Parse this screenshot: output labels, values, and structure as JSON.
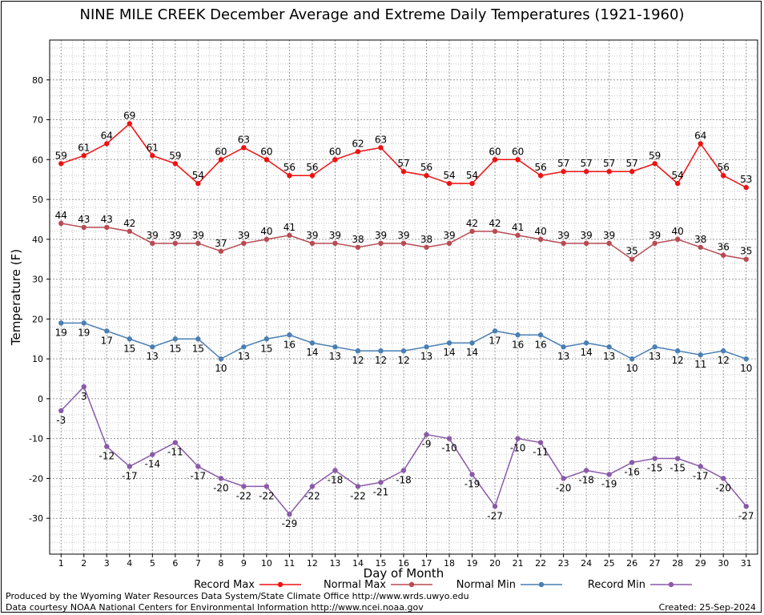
{
  "chart_data": {
    "type": "line",
    "title": "NINE MILE CREEK December Average and Extreme Daily Temperatures (1921-1960)",
    "xlabel": "Day of Month",
    "ylabel": "Temperature (F)",
    "x": [
      1,
      2,
      3,
      4,
      5,
      6,
      7,
      8,
      9,
      10,
      11,
      12,
      13,
      14,
      15,
      16,
      17,
      18,
      19,
      20,
      21,
      22,
      23,
      24,
      25,
      26,
      27,
      28,
      29,
      30,
      31
    ],
    "xlim": [
      0.5,
      31.5
    ],
    "ylim": [
      -39,
      90
    ],
    "yticks": [
      -30,
      -20,
      -10,
      0,
      10,
      20,
      30,
      40,
      50,
      60,
      70,
      80
    ],
    "grid": true,
    "legend_position": "bottom",
    "series": [
      {
        "name": "Record Max",
        "color": "#ee1111",
        "values": [
          59,
          61,
          64,
          69,
          61,
          59,
          54,
          60,
          63,
          60,
          56,
          56,
          60,
          62,
          63,
          57,
          56,
          54,
          54,
          60,
          60,
          56,
          57,
          57,
          57,
          57,
          59,
          54,
          64,
          56,
          53
        ]
      },
      {
        "name": "Normal Max",
        "color": "#b84a52",
        "values": [
          44,
          43,
          43,
          42,
          39,
          39,
          39,
          37,
          39,
          40,
          41,
          39,
          39,
          38,
          39,
          39,
          38,
          39,
          42,
          42,
          41,
          40,
          39,
          39,
          39,
          35,
          39,
          40,
          38,
          36,
          35
        ]
      },
      {
        "name": "Normal Min",
        "color": "#4a7fb4",
        "values": [
          19,
          19,
          17,
          15,
          13,
          15,
          15,
          10,
          13,
          15,
          16,
          14,
          13,
          12,
          12,
          12,
          13,
          14,
          14,
          17,
          16,
          16,
          13,
          14,
          13,
          10,
          13,
          12,
          11,
          12,
          10
        ]
      },
      {
        "name": "Record Min",
        "color": "#8a5aa8",
        "values": [
          -3,
          3,
          -12,
          -17,
          -14,
          -11,
          -17,
          -20,
          -22,
          -22,
          -29,
          -22,
          -18,
          -22,
          -21,
          -18,
          -9,
          -10,
          -19,
          -27,
          -10,
          -11,
          -20,
          -18,
          -19,
          -16,
          -15,
          -15,
          -17,
          -20,
          -27
        ]
      }
    ]
  },
  "footer": {
    "producer": "Produced by the Wyoming Water Resources Data System/State Climate Office http://www.wrds.uwyo.edu",
    "courtesy": "Data courtesy NOAA National Centers for Environmental Information http://www.ncei.noaa.gov",
    "created": "Created:  25-Sep-2024"
  }
}
